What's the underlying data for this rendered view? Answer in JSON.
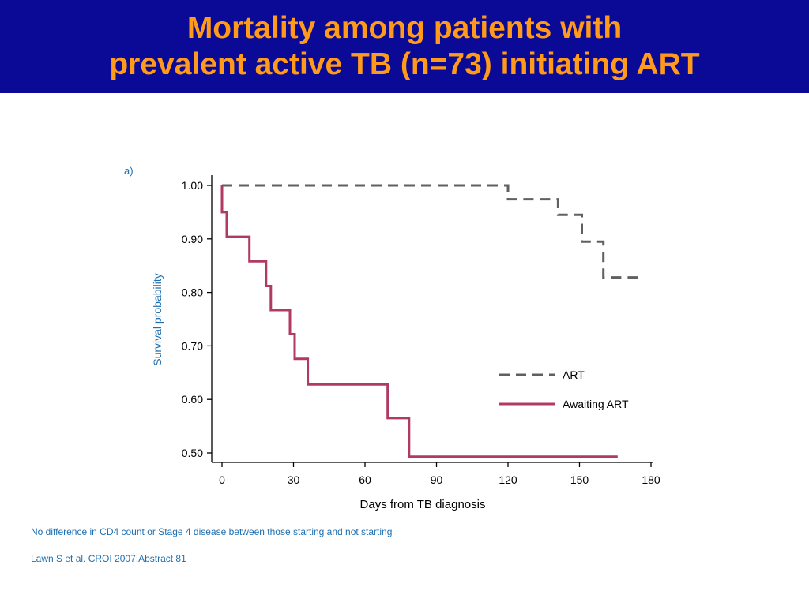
{
  "slide": {
    "title_line1": "Mortality among patients with",
    "title_line2": "prevalent active TB (n=73) initiating ART",
    "footnote": "No difference in CD4 count or Stage 4 disease between those starting and not starting",
    "citation": "Lawn S et al. CROI 2007;Abstract 81",
    "colors": {
      "header_bg": "#0a0a96",
      "title": "#ff9a1a",
      "note_text": "#1f6fb0"
    }
  },
  "chart_data": {
    "type": "line",
    "panel_label": "a)",
    "xlabel": "Days from TB diagnosis",
    "ylabel": "Survival probability",
    "xlim": [
      0,
      180
    ],
    "ylim": [
      0.5,
      1.0
    ],
    "x_ticks": [
      0,
      30,
      60,
      90,
      120,
      150,
      180
    ],
    "x_tick_labels": [
      "0",
      "30",
      "60",
      "90",
      "120",
      "150",
      "180"
    ],
    "y_ticks": [
      0.5,
      0.6,
      0.7,
      0.8,
      0.9,
      1.0
    ],
    "y_tick_labels": [
      "0.50",
      "0.60",
      "0.70",
      "0.80",
      "0.90",
      "1.00"
    ],
    "grid": false,
    "legend_position": "right",
    "series": [
      {
        "name": "ART",
        "style": "dashed",
        "color": "#606060",
        "x": [
          0,
          120,
          120,
          141,
          141,
          151,
          151,
          160,
          160,
          176
        ],
        "y": [
          1.0,
          1.0,
          0.974,
          0.974,
          0.945,
          0.945,
          0.895,
          0.895,
          0.828,
          0.828
        ]
      },
      {
        "name": "Awaiting ART",
        "style": "solid",
        "color": "#b03a62",
        "x": [
          0,
          0,
          1,
          1,
          2,
          2,
          11.5,
          11.5,
          18.5,
          18.5,
          20.5,
          20.5,
          28.5,
          28.5,
          30.5,
          30.5,
          36,
          36,
          69.5,
          69.5,
          78.5,
          78.5,
          166
        ],
        "y": [
          1.0,
          0.95,
          0.95,
          0.95,
          0.95,
          0.904,
          0.904,
          0.858,
          0.858,
          0.812,
          0.812,
          0.767,
          0.767,
          0.722,
          0.722,
          0.676,
          0.676,
          0.628,
          0.628,
          0.565,
          0.565,
          0.493,
          0.493
        ]
      }
    ]
  }
}
